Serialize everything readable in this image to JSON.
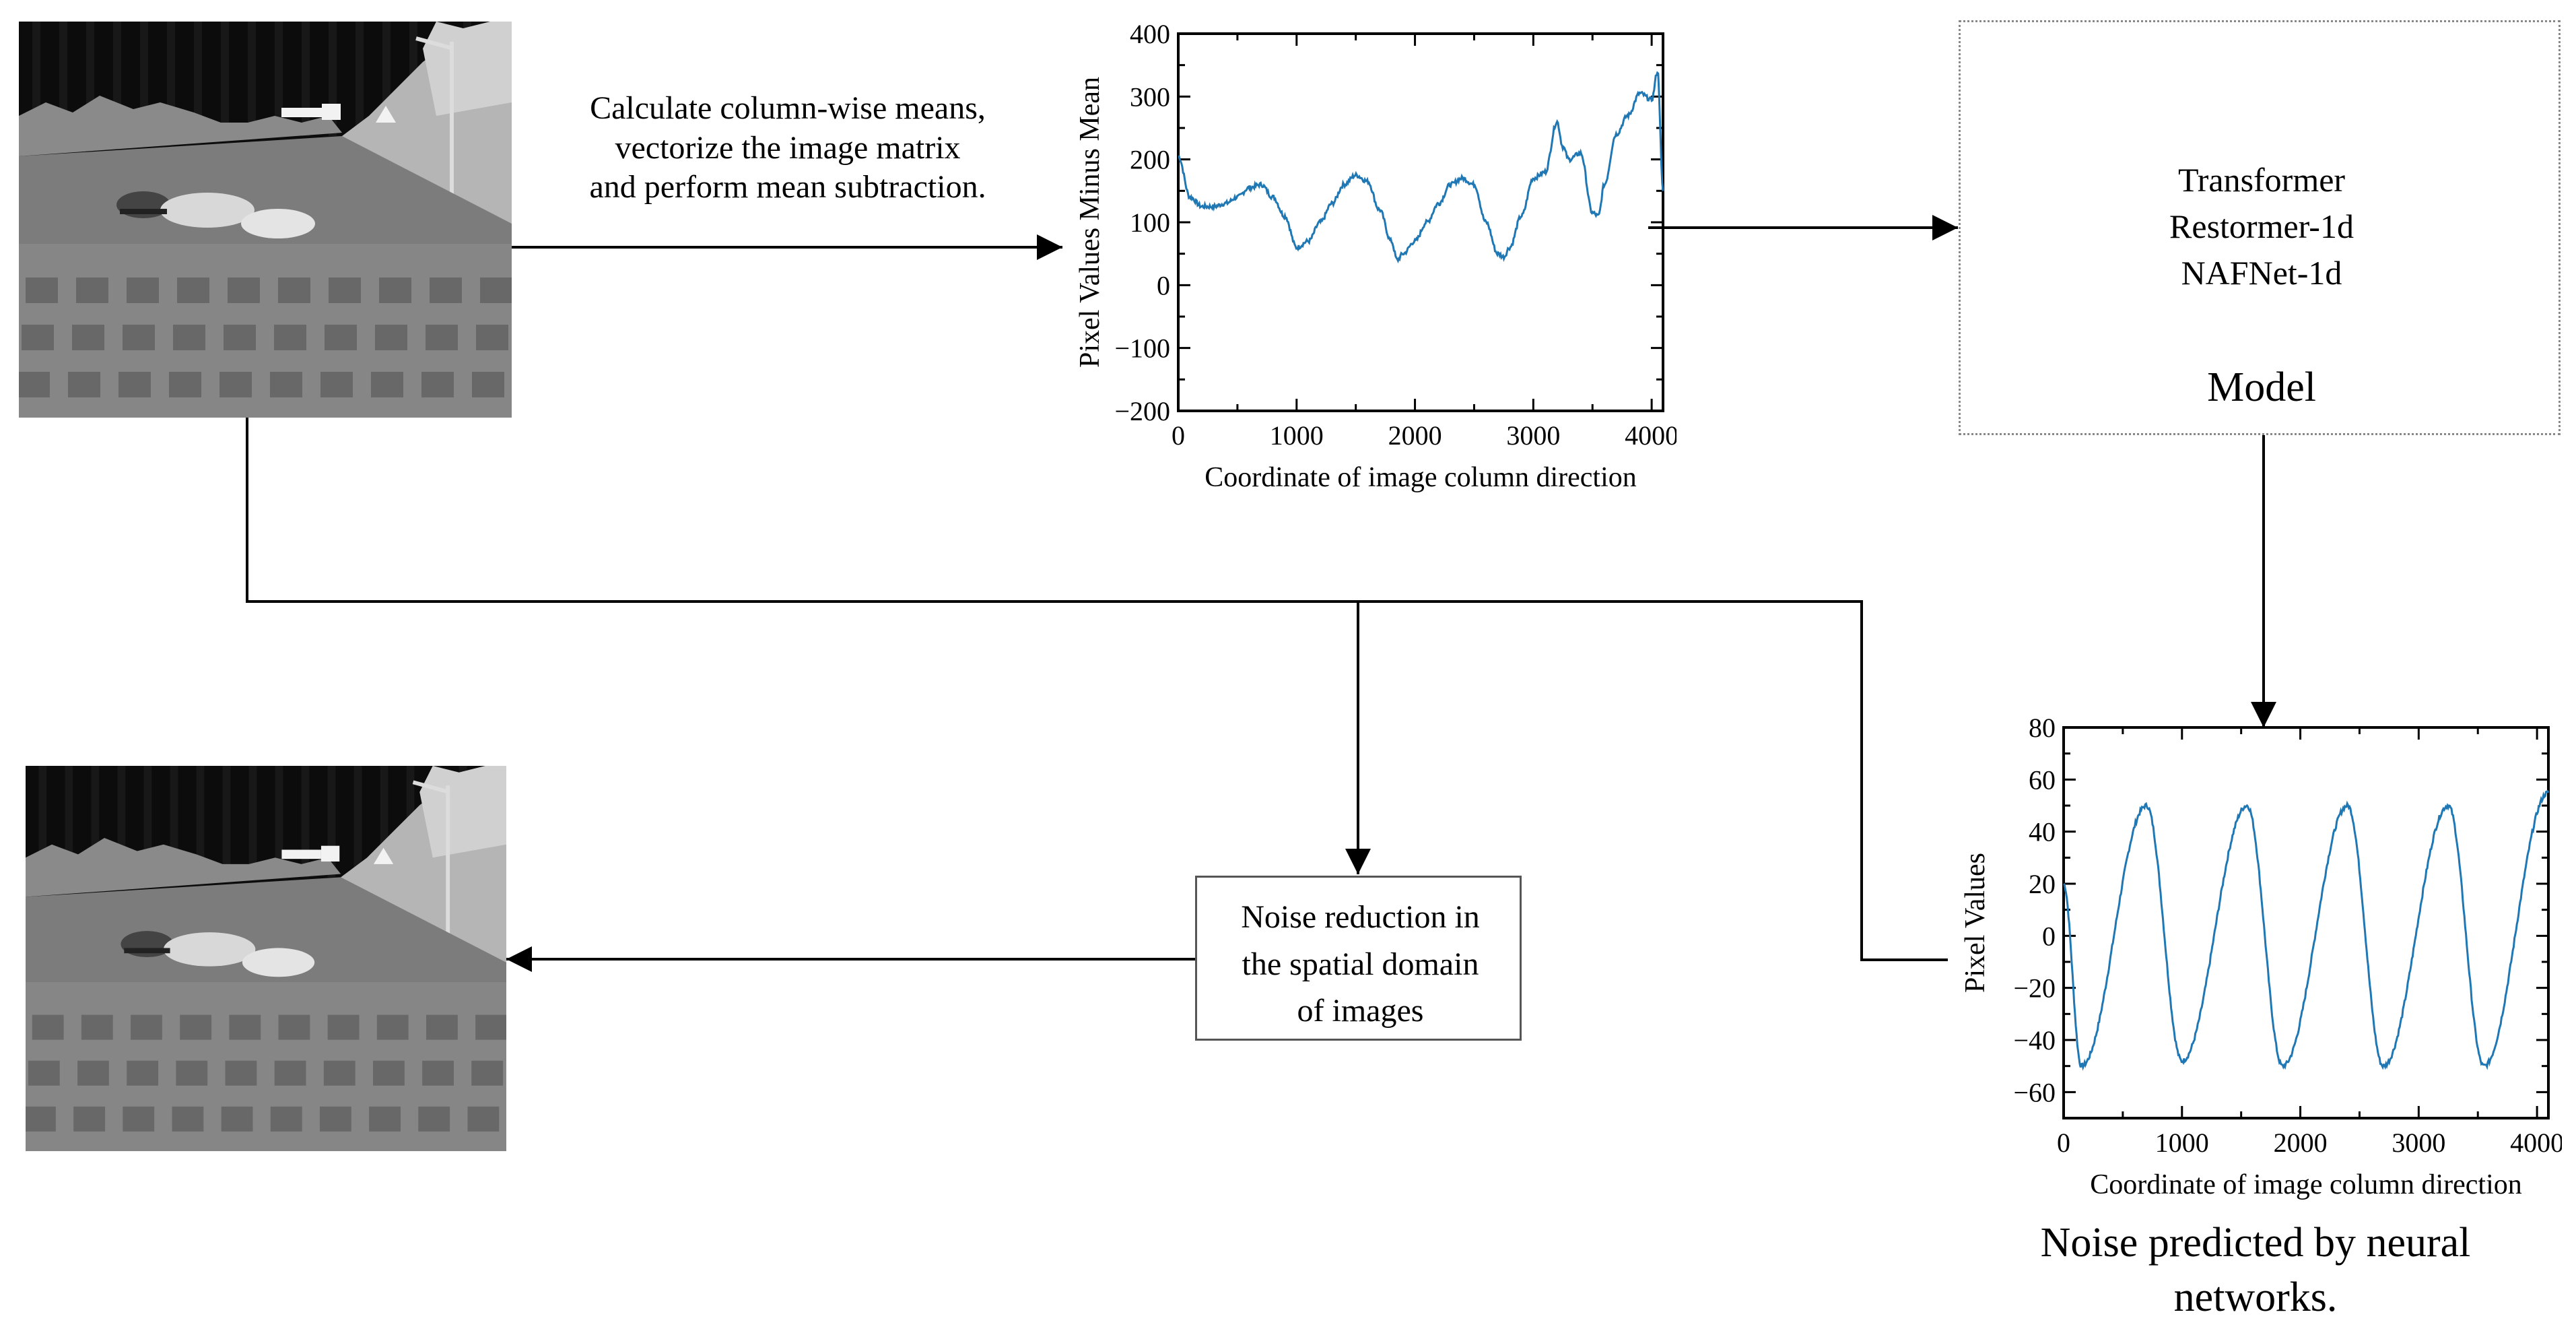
{
  "input_step_label": [
    "Calculate column-wise means,",
    "vectorize the image matrix",
    "and  perform mean subtraction."
  ],
  "model_box": {
    "items": [
      "Transformer",
      "Restormer-1d",
      "NAFNet-1d"
    ],
    "title": "Model"
  },
  "noise_reduction_label": [
    "Noise reduction in",
    "the spatial domain",
    "of images"
  ],
  "noise_caption": [
    "Noise predicted by neural",
    "networks."
  ],
  "colors": {
    "series": "#1f77b4",
    "axis": "#000000",
    "box_border_dotted": "#888888"
  },
  "images": [
    {
      "role": "input-infrared-image",
      "icon": "infrared-road-scene"
    },
    {
      "role": "denoised-output-image",
      "icon": "infrared-road-scene"
    }
  ],
  "chart_data": [
    {
      "type": "line",
      "title": "",
      "xlabel": "Coordinate of image column direction",
      "ylabel": "Pixel Values Minus Mean",
      "xlim": [
        0,
        4096
      ],
      "ylim": [
        -200,
        400
      ],
      "xticks": [
        0,
        1000,
        2000,
        3000,
        4000
      ],
      "yticks": [
        -200,
        -100,
        0,
        100,
        200,
        300,
        400
      ],
      "grid": false,
      "series": [
        {
          "color": "#1f77b4",
          "x": [
            0,
            100,
            200,
            300,
            400,
            500,
            600,
            700,
            800,
            900,
            1000,
            1100,
            1200,
            1300,
            1400,
            1500,
            1600,
            1700,
            1800,
            1850,
            1900,
            2000,
            2100,
            2200,
            2300,
            2400,
            2500,
            2600,
            2700,
            2750,
            2800,
            2900,
            3000,
            3100,
            3200,
            3250,
            3300,
            3400,
            3500,
            3550,
            3600,
            3700,
            3800,
            3900,
            4000,
            4050,
            4096
          ],
          "y": [
            205,
            140,
            125,
            125,
            130,
            140,
            155,
            160,
            140,
            110,
            60,
            70,
            100,
            130,
            160,
            175,
            165,
            120,
            70,
            40,
            50,
            70,
            100,
            130,
            160,
            170,
            160,
            100,
            50,
            45,
            60,
            110,
            170,
            180,
            260,
            220,
            200,
            210,
            115,
            110,
            160,
            240,
            270,
            305,
            295,
            340,
            150
          ]
        }
      ]
    },
    {
      "type": "line",
      "title": "",
      "xlabel": "Coordinate of image column direction",
      "ylabel": "Pixel Values",
      "xlim": [
        0,
        4096
      ],
      "ylim": [
        -70,
        80
      ],
      "xticks": [
        0,
        1000,
        2000,
        3000,
        4000
      ],
      "yticks": [
        -60,
        -40,
        -20,
        0,
        20,
        40,
        60,
        80
      ],
      "grid": false,
      "series": [
        {
          "color": "#1f77b4",
          "x": [
            0,
            150,
            700,
            1000,
            1550,
            1850,
            2400,
            2700,
            3250,
            3550,
            4096
          ],
          "y": [
            20,
            -50,
            50,
            -48,
            50,
            -50,
            50,
            -50,
            50,
            -50,
            55
          ]
        }
      ]
    }
  ]
}
